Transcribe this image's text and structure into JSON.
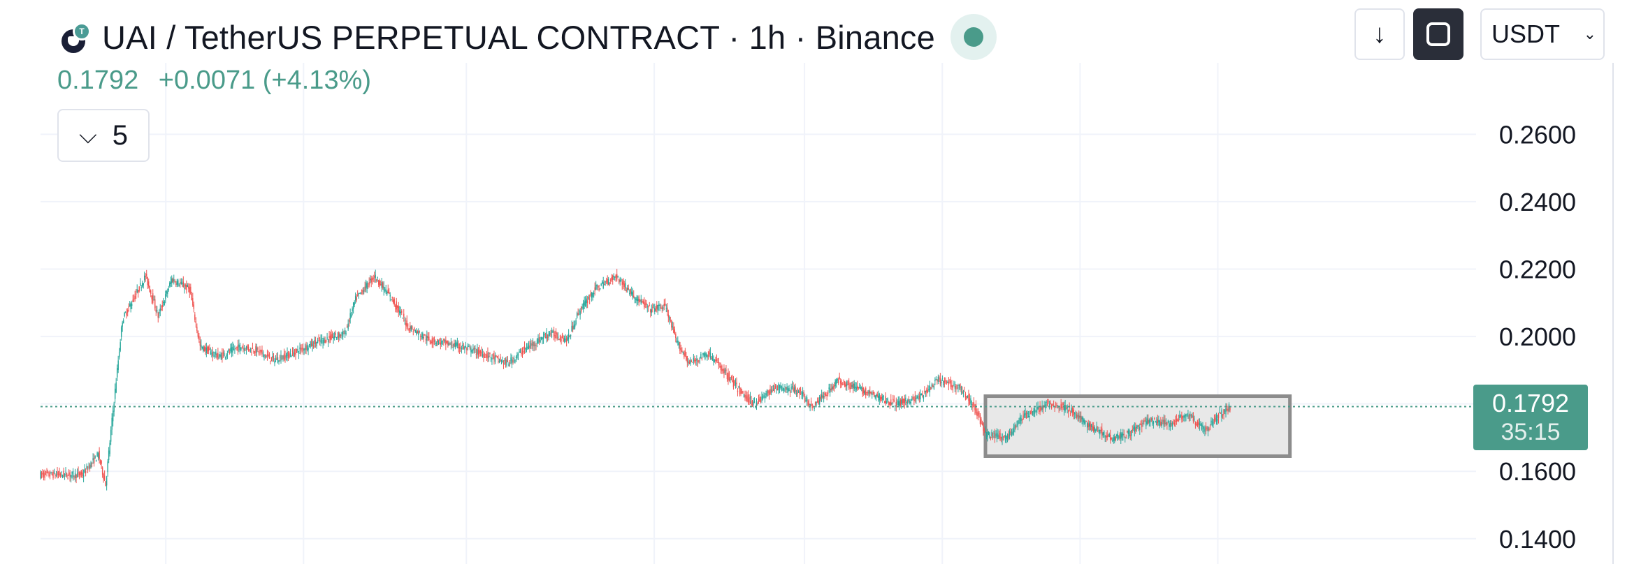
{
  "header": {
    "title": "UAI / TetherUS PERPETUAL CONTRACT · 1h · Binance",
    "last": "0.1792",
    "change": "+0.0071 (+4.13%)",
    "indicator_count": "5",
    "unit": "USDT"
  },
  "colors": {
    "up": "#26a69a",
    "down": "#ef5350",
    "grid": "#f0f3fa",
    "badge": "#4a9b8a",
    "box_fill": "#e8e8e8",
    "box_border": "#8c8c8c"
  },
  "icons": [
    "logo-icon",
    "status-dot-icon",
    "chevron-down-icon",
    "arrow-down-icon",
    "fullscreen-icon",
    "caret-down-icon"
  ],
  "chart_data": {
    "type": "candlestick",
    "title": "UAI / TetherUS PERPETUAL CONTRACT · 1h · Binance",
    "ylim": [
      0.1325,
      0.2812
    ],
    "yticks": [
      "0.2600",
      "0.2400",
      "0.2200",
      "0.2000",
      "0.1600",
      "0.1400"
    ],
    "last_price": "0.1792",
    "countdown": "35:15",
    "grid": true,
    "path": [
      [
        0,
        0.159
      ],
      [
        40,
        0.159
      ],
      [
        55,
        0.165
      ],
      [
        62,
        0.156
      ],
      [
        68,
        0.175
      ],
      [
        78,
        0.205
      ],
      [
        90,
        0.212
      ],
      [
        100,
        0.218
      ],
      [
        112,
        0.206
      ],
      [
        125,
        0.217
      ],
      [
        142,
        0.214
      ],
      [
        152,
        0.197
      ],
      [
        170,
        0.194
      ],
      [
        190,
        0.197
      ],
      [
        205,
        0.196
      ],
      [
        222,
        0.193
      ],
      [
        240,
        0.195
      ],
      [
        260,
        0.198
      ],
      [
        290,
        0.201
      ],
      [
        300,
        0.211
      ],
      [
        318,
        0.218
      ],
      [
        335,
        0.211
      ],
      [
        350,
        0.203
      ],
      [
        370,
        0.199
      ],
      [
        400,
        0.197
      ],
      [
        420,
        0.195
      ],
      [
        445,
        0.192
      ],
      [
        460,
        0.196
      ],
      [
        485,
        0.201
      ],
      [
        502,
        0.199
      ],
      [
        512,
        0.207
      ],
      [
        528,
        0.214
      ],
      [
        548,
        0.218
      ],
      [
        565,
        0.212
      ],
      [
        580,
        0.208
      ],
      [
        595,
        0.209
      ],
      [
        605,
        0.199
      ],
      [
        618,
        0.192
      ],
      [
        636,
        0.195
      ],
      [
        650,
        0.19
      ],
      [
        668,
        0.183
      ],
      [
        680,
        0.18
      ],
      [
        700,
        0.185
      ],
      [
        722,
        0.184
      ],
      [
        735,
        0.179
      ],
      [
        760,
        0.187
      ],
      [
        790,
        0.183
      ],
      [
        815,
        0.18
      ],
      [
        838,
        0.182
      ],
      [
        855,
        0.187
      ],
      [
        875,
        0.185
      ],
      [
        890,
        0.179
      ],
      [
        900,
        0.171
      ],
      [
        920,
        0.17
      ],
      [
        935,
        0.176
      ],
      [
        960,
        0.18
      ],
      [
        977,
        0.179
      ],
      [
        996,
        0.174
      ],
      [
        1020,
        0.17
      ],
      [
        1035,
        0.171
      ],
      [
        1055,
        0.175
      ],
      [
        1075,
        0.174
      ],
      [
        1092,
        0.177
      ],
      [
        1110,
        0.172
      ],
      [
        1120,
        0.176
      ],
      [
        1133,
        0.1792
      ]
    ],
    "highlight_box": {
      "x_start": 900,
      "x_end": 1190,
      "y_low": 0.1645,
      "y_high": 0.1823
    }
  }
}
